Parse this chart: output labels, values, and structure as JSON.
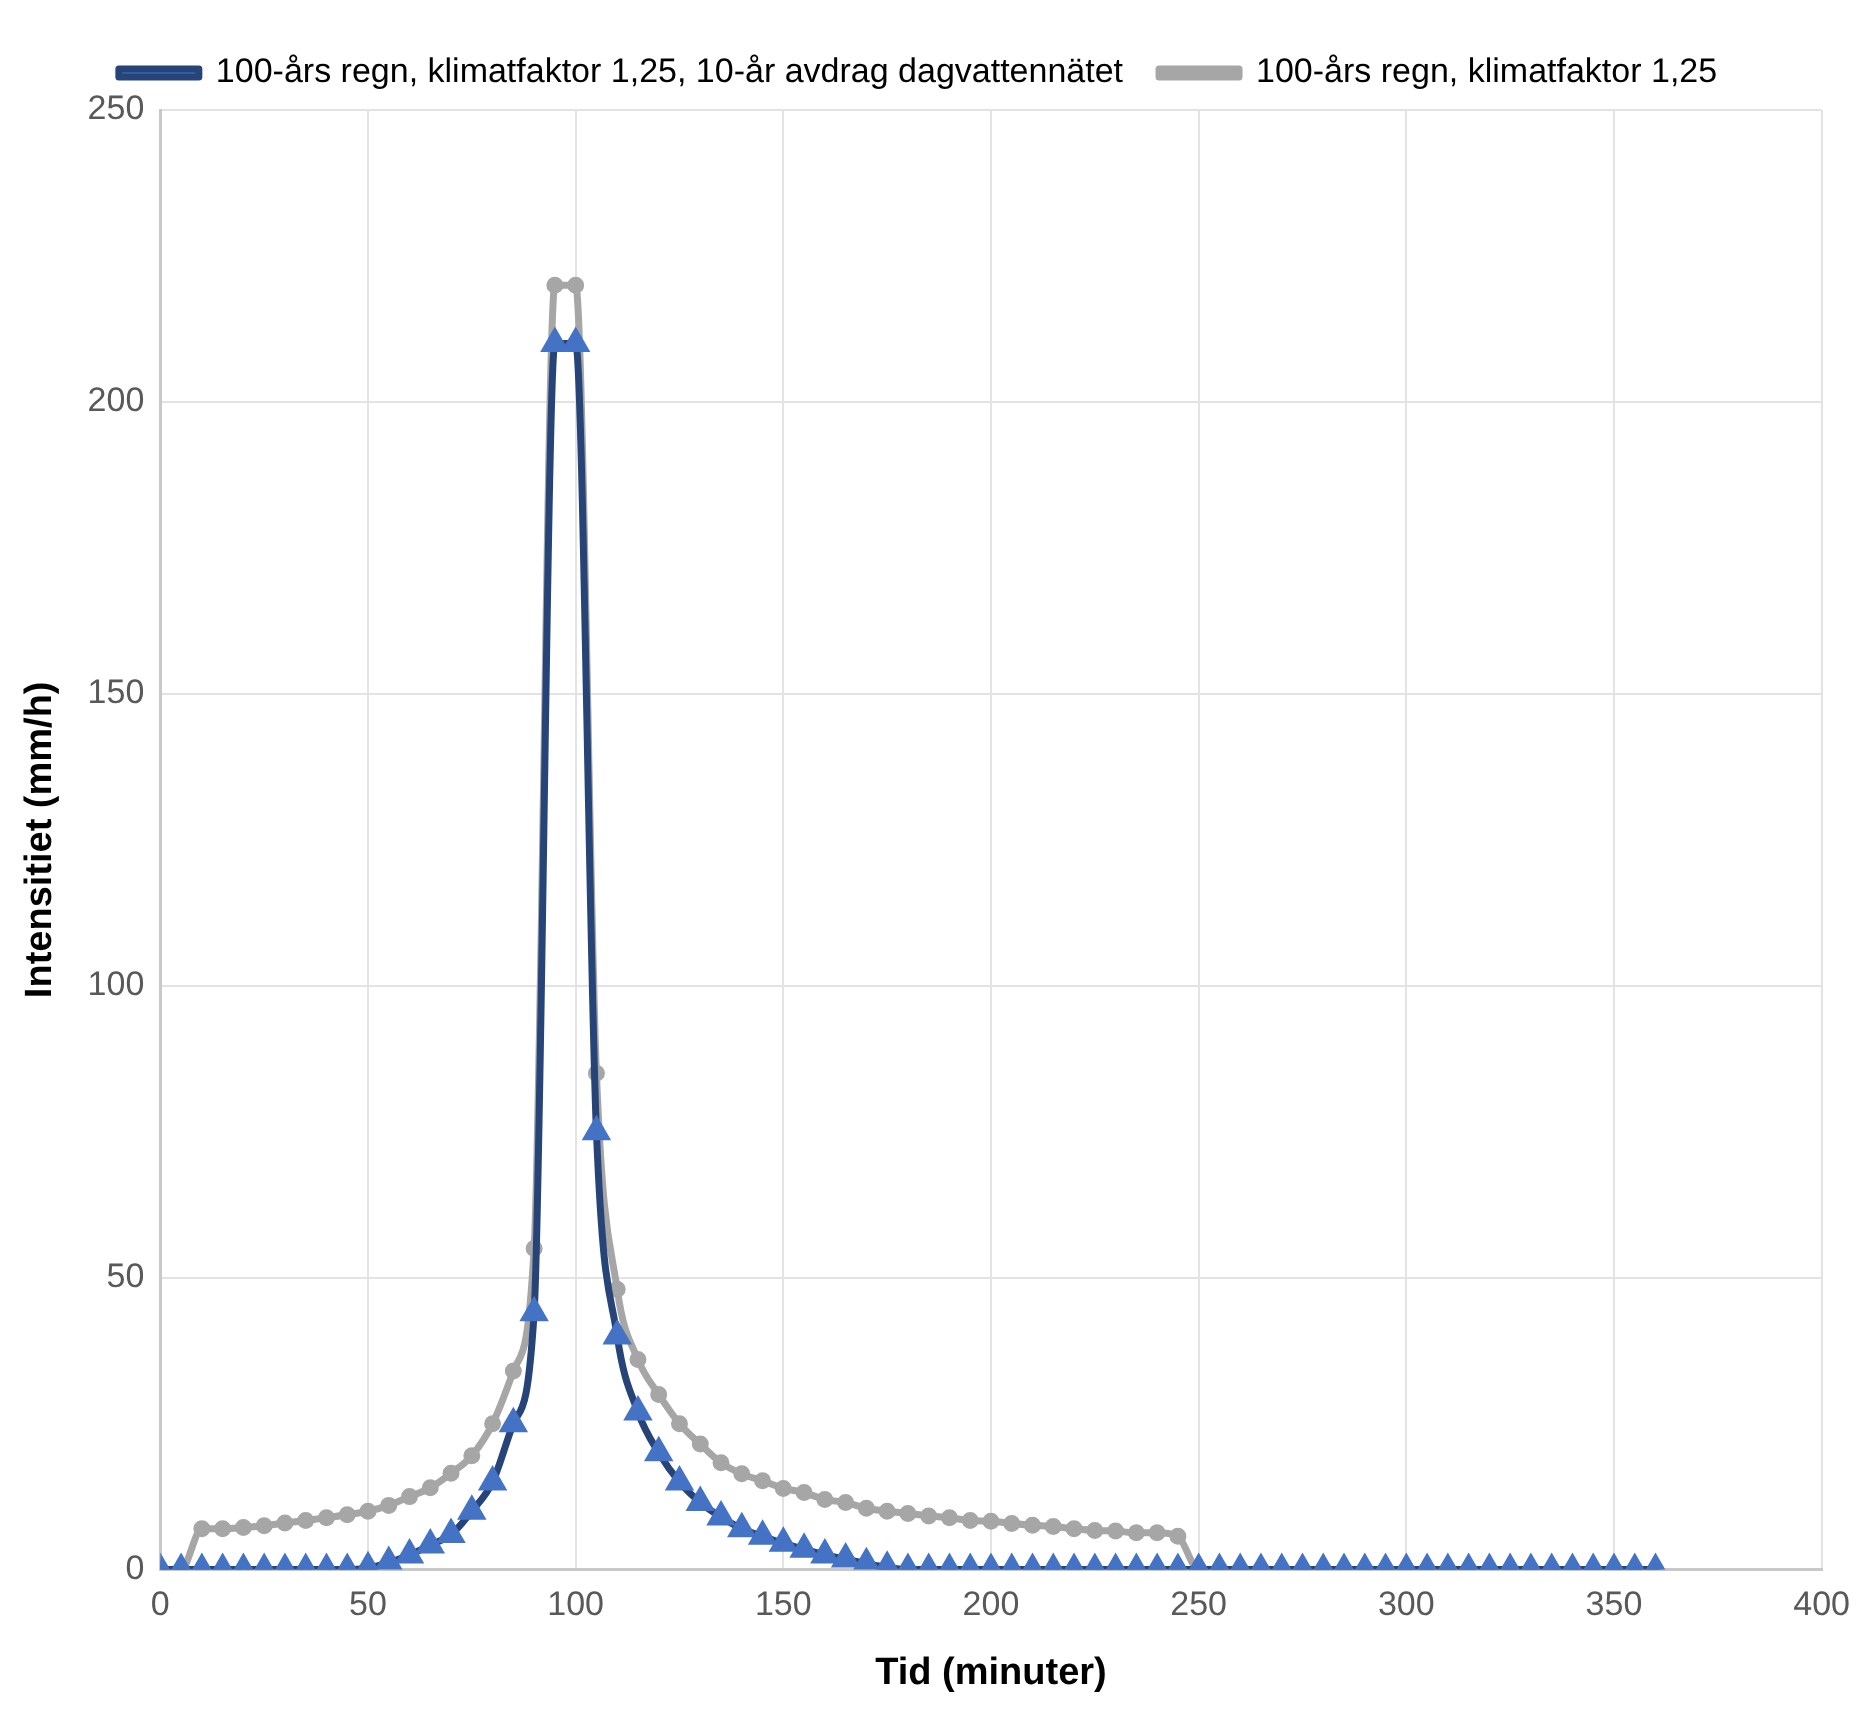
{
  "chart_data": {
    "type": "line",
    "xlabel": "Tid (minuter)",
    "ylabel": "Intensitiet (mm/h)",
    "x": [
      0,
      5,
      10,
      15,
      20,
      25,
      30,
      35,
      40,
      45,
      50,
      55,
      60,
      65,
      70,
      75,
      80,
      85,
      90,
      95,
      100,
      105,
      110,
      115,
      120,
      125,
      130,
      135,
      140,
      145,
      150,
      155,
      160,
      165,
      170,
      175,
      180,
      185,
      190,
      195,
      200,
      205,
      210,
      215,
      220,
      225,
      230,
      235,
      240,
      245,
      250,
      255,
      260,
      265,
      270,
      275,
      280,
      285,
      290,
      295,
      300,
      305,
      310,
      315,
      320,
      325,
      330,
      335,
      340,
      345,
      350,
      355,
      360
    ],
    "series": [
      {
        "name": "100-års regn, klimatfaktor 1,25",
        "color": "#a6a6a6",
        "marker": "circle",
        "values": [
          0,
          0,
          7,
          7,
          7.2,
          7.5,
          8,
          8.4,
          8.9,
          9.4,
          10,
          11,
          12.5,
          14,
          16.5,
          19.5,
          25,
          34,
          55,
          220,
          220,
          85,
          48,
          36,
          30,
          25,
          21.5,
          18.3,
          16.4,
          15.2,
          13.9,
          13.2,
          12,
          11.5,
          10.5,
          10,
          9.6,
          9.2,
          8.9,
          8.4,
          8.3,
          7.9,
          7.6,
          7.4,
          7,
          6.7,
          6.6,
          6.3,
          6.3,
          5.7,
          0,
          0,
          0,
          0,
          0,
          0,
          0,
          0,
          0,
          0,
          0,
          0,
          0,
          0,
          0,
          0,
          0,
          0,
          0,
          0,
          0,
          0,
          0
        ]
      },
      {
        "name": "100-års regn, klimatfaktor 1,25, 10-år avdrag dagvattennätet",
        "color": "#264478",
        "marker": "triangle",
        "values": [
          0,
          0,
          0,
          0,
          0,
          0,
          0,
          0,
          0,
          0,
          0.3,
          1.2,
          2.5,
          4.2,
          6,
          10,
          15,
          25,
          44,
          210,
          210,
          75,
          40,
          27,
          20,
          15,
          11.5,
          9,
          7,
          5.7,
          4.5,
          3.5,
          2.5,
          1.8,
          1,
          0.4,
          0,
          0,
          0,
          0,
          0,
          0,
          0,
          0,
          0,
          0,
          0,
          0,
          0,
          0,
          0,
          0,
          0,
          0,
          0,
          0,
          0,
          0,
          0,
          0,
          0,
          0,
          0,
          0,
          0,
          0,
          0,
          0,
          0,
          0,
          0,
          0,
          0
        ]
      }
    ],
    "xlim": [
      0,
      400
    ],
    "xticks": [
      0,
      50,
      100,
      150,
      200,
      250,
      300,
      350,
      400
    ],
    "ylim": [
      0,
      250
    ],
    "yticks": [
      0,
      50,
      100,
      150,
      200,
      250
    ],
    "grid": true,
    "legend": "top"
  }
}
